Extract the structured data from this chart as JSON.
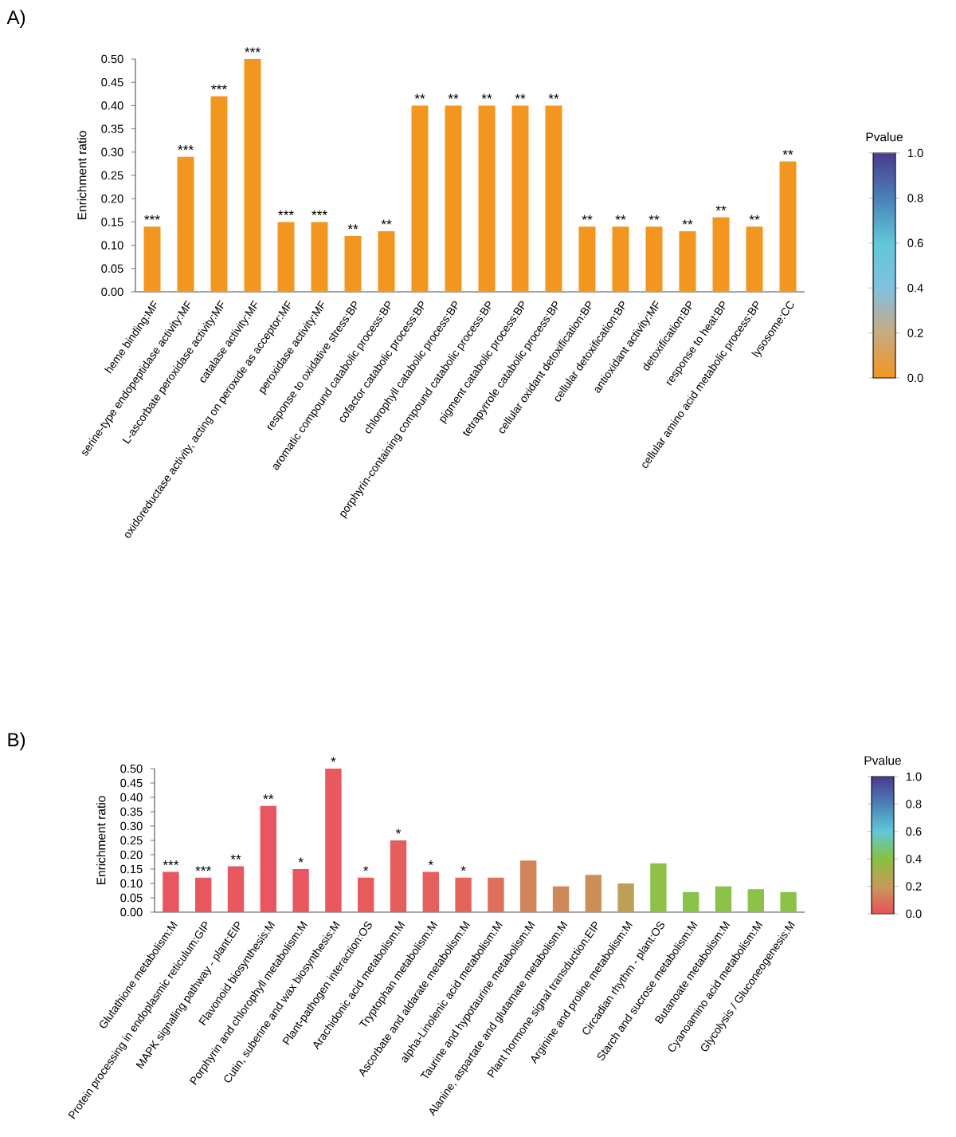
{
  "chart_data": [
    {
      "type": "bar",
      "title": "A)",
      "ylabel": "Enrichment ratio",
      "clabel": "Pvalue",
      "categories": [
        "heme binding:MF",
        "serine-type endopeptidase activity:MF",
        "L-ascorbate peroxidase activity:MF",
        "catalase activity:MF",
        "oxidoreductase activity, acting on peroxide as acceptor:MF",
        "peroxidase activity:MF",
        "response to oxidative stress:BP",
        "aromatic compound catabolic process:BP",
        "cofactor catabolic process:BP",
        "chlorophyll catabolic process:BP",
        "porphyrin-containing compound catabolic process:BP",
        "pigment catabolic process:BP",
        "tetrapyrrole catabolic process:BP",
        "cellular oxidant detoxification:BP",
        "cellular detoxification:BP",
        "antioxidant activity:MF",
        "detoxification:BP",
        "response to heat:BP",
        "cellular amino acid metabolic process:BP",
        "lysosome:CC"
      ],
      "series": [
        {
          "color": "#f2961f",
          "values": [
            0.14,
            0.29,
            0.42,
            0.5,
            0.15,
            0.15,
            0.12,
            0.13,
            0.4,
            0.4,
            0.4,
            0.4,
            0.4,
            0.14,
            0.14,
            0.14,
            0.13,
            0.16,
            0.14,
            0.28
          ],
          "value_labels": [
            "***",
            "***",
            "***",
            "***",
            "***",
            "***",
            "**",
            "**",
            "**",
            "**",
            "**",
            "**",
            "**",
            "**",
            "**",
            "**",
            "**",
            "**",
            "**",
            "**"
          ]
        }
      ],
      "ylim": [
        0,
        0.5
      ],
      "yticks": [
        {
          "value": 0,
          "label": "0.00"
        },
        {
          "value": 0.05,
          "label": "0.05"
        },
        {
          "value": 0.1,
          "label": "0.10"
        },
        {
          "value": 0.15,
          "label": "0.15"
        },
        {
          "value": 0.2,
          "label": "0.20"
        },
        {
          "value": 0.25,
          "label": "0.25"
        },
        {
          "value": 0.3,
          "label": "0.30"
        },
        {
          "value": 0.35,
          "label": "0.35"
        },
        {
          "value": 0.4,
          "label": "0.40"
        },
        {
          "value": 0.45,
          "label": "0.45"
        },
        {
          "value": 0.5,
          "label": "0.50"
        }
      ],
      "clim": [
        0,
        1
      ],
      "cticks": [
        {
          "value": 0,
          "label": "0.0"
        },
        {
          "value": 0.2,
          "label": "0.2"
        },
        {
          "value": 0.4,
          "label": "0.4"
        },
        {
          "value": 0.6,
          "label": "0.6"
        },
        {
          "value": 0.8,
          "label": "0.8"
        },
        {
          "value": 1,
          "label": "1.0"
        }
      ]
    },
    {
      "type": "bar",
      "title": "B)",
      "ylabel": "Enrichment ratio",
      "clabel": "Pvalue",
      "categories": [
        "Glutathione metabolism:M",
        "Protein processing in endoplasmic reticulum:GIP",
        "MAPK signaling pathway - plant:EIP",
        "Flavonoid biosynthesis:M",
        "Porphyrin and chlorophyll metabolism:M",
        "Cutin, suberine and wax biosynthesis:M",
        "Plant-pathogen interaction:OS",
        "Arachidonic acid metabolism:M",
        "Tryptophan metabolism:M",
        "Ascorbate and aldarate metabolism:M",
        "alpha-Linolenic acid metabolism:M",
        "Taurine and hypotaurine metabolism:M",
        "Alanine, aspartate and glutamate metabolism:M",
        "Plant hormone signal transduction:EIP",
        "Arginine and proline metabolism:M",
        "Circadian rhythm - plant:OS",
        "Starch and sucrose metabolism:M",
        "Butanoate metabolism:M",
        "Cyanoamino acid metabolism:M",
        "Glycolysis / Gluconeogenesis:M"
      ],
      "series": [
        {
          "values": [
            0.14,
            0.12,
            0.16,
            0.37,
            0.15,
            0.5,
            0.12,
            0.25,
            0.14,
            0.12,
            0.12,
            0.18,
            0.09,
            0.13,
            0.1,
            0.17,
            0.07,
            0.09,
            0.08,
            0.07
          ],
          "colors": [
            "#e8575f",
            "#e8575f",
            "#e8575f",
            "#e8575f",
            "#e8575f",
            "#e8585e",
            "#e65c5d",
            "#e65e5c",
            "#e5605c",
            "#e3645b",
            "#dd7058",
            "#d1845a",
            "#cd8a58",
            "#cb8f58",
            "#c09e55",
            "#90c048",
            "#8bc24a",
            "#8cc24a",
            "#8dc24a",
            "#8dc24a"
          ],
          "value_labels": [
            "***",
            "***",
            "**",
            "**",
            "*",
            "*",
            "*",
            "*",
            "*",
            "*",
            null,
            null,
            null,
            null,
            null,
            null,
            null,
            null,
            null,
            null
          ]
        }
      ],
      "ylim": [
        0,
        0.5
      ],
      "yticks": [
        {
          "value": 0,
          "label": "0.00"
        },
        {
          "value": 0.05,
          "label": "0.05"
        },
        {
          "value": 0.1,
          "label": "0.10"
        },
        {
          "value": 0.15,
          "label": "0.15"
        },
        {
          "value": 0.2,
          "label": "0.20"
        },
        {
          "value": 0.25,
          "label": "0.25"
        },
        {
          "value": 0.3,
          "label": "0.30"
        },
        {
          "value": 0.35,
          "label": "0.35"
        },
        {
          "value": 0.4,
          "label": "0.40"
        },
        {
          "value": 0.45,
          "label": "0.45"
        },
        {
          "value": 0.5,
          "label": "0.50"
        }
      ],
      "clim": [
        0,
        1
      ],
      "cticks": [
        {
          "value": 0,
          "label": "0.0"
        },
        {
          "value": 0.2,
          "label": "0.2"
        },
        {
          "value": 0.4,
          "label": "0.4"
        },
        {
          "value": 0.6,
          "label": "0.6"
        },
        {
          "value": 0.8,
          "label": "0.8"
        },
        {
          "value": 1,
          "label": "1.0"
        }
      ]
    }
  ]
}
